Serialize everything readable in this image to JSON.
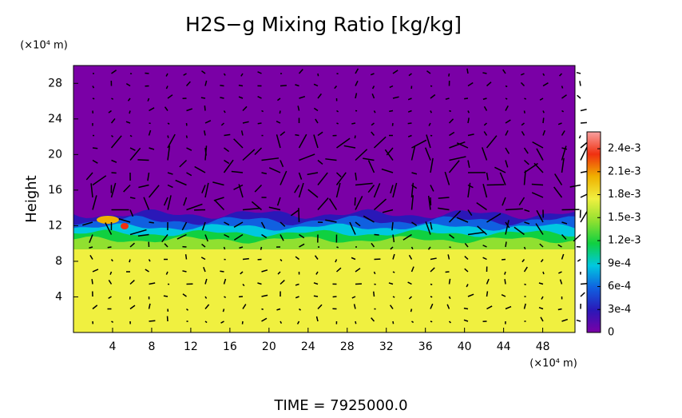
{
  "chart_data": {
    "type": "heatmap",
    "title": "H2S−g Mixing Ratio [kg/kg]",
    "y_label": "Height",
    "x_unit": "(×10⁴ m)",
    "y_unit": "(×10⁴ m)",
    "footer": "TIME  =  7925000.0",
    "xlim": [
      0,
      51.3
    ],
    "ylim": [
      0,
      30
    ],
    "xticks": [
      4,
      8,
      12,
      16,
      20,
      24,
      28,
      32,
      36,
      40,
      44,
      48
    ],
    "yticks": [
      4,
      8,
      12,
      16,
      20,
      24,
      28
    ],
    "colorbar_lim": [
      0,
      0.00262
    ],
    "colorbar_ticks": [
      0,
      {
        "value": 0.0003,
        "label": "3e-4"
      },
      {
        "value": 0.0006,
        "label": "6e-4"
      },
      {
        "value": 0.0009,
        "label": "9e-4"
      },
      {
        "value": 0.0012,
        "label": "1.2e-3"
      },
      {
        "value": 0.0015,
        "label": "1.5e-3"
      },
      {
        "value": 0.0018,
        "label": "1.8e-3"
      },
      {
        "value": 0.0021,
        "label": "2.1e-3"
      },
      {
        "value": 0.0024,
        "label": "2.4e-3"
      }
    ],
    "colorscale": [
      "#7a00a6",
      "#2a18b8",
      "#1060e0",
      "#00c8e0",
      "#10d040",
      "#90e030",
      "#f0f040",
      "#f0b000",
      "#f03010",
      "#f8a0a0"
    ]
  }
}
